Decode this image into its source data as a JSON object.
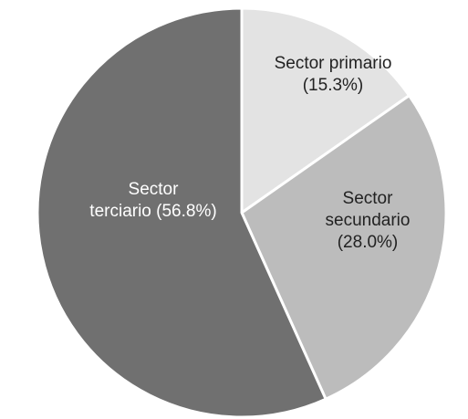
{
  "chart_data": {
    "type": "pie",
    "start_angle_deg": 0,
    "direction": "clockwise",
    "slices": [
      {
        "name": "Sector primario",
        "value": 15.3,
        "color": "#e3e3e3",
        "label_color": "#222222",
        "label_lines": [
          "Sector primario",
          "(15.3%)"
        ]
      },
      {
        "name": "Sector secundario",
        "value": 28.0,
        "color": "#bcbcbc",
        "label_color": "#222222",
        "label_lines": [
          "Sector",
          "secundario",
          "(28.0%)"
        ]
      },
      {
        "name": "Sector terciario",
        "value": 56.8,
        "color": "#707070",
        "label_color": "#ffffff",
        "label_lines": [
          "Sector",
          "terciario (56.8%)"
        ]
      }
    ]
  }
}
